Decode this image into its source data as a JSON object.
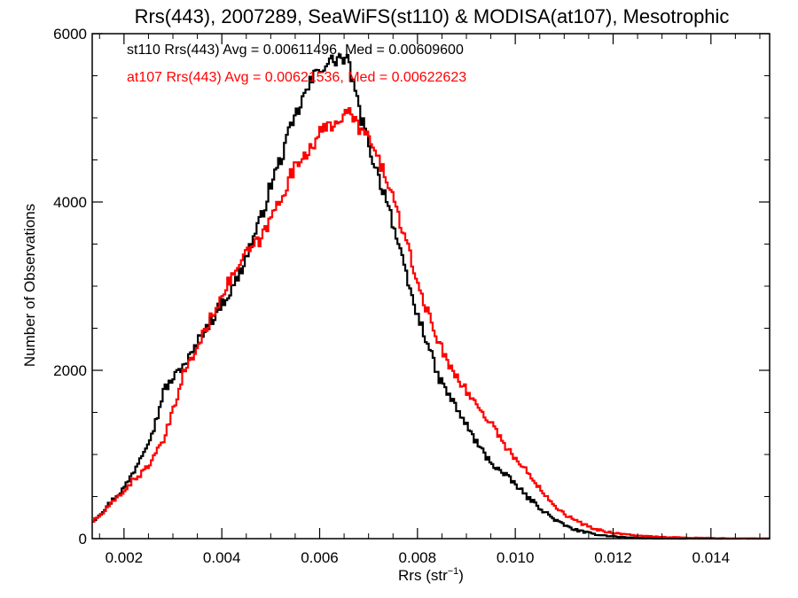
{
  "chart_data": {
    "type": "histogram-step",
    "title": "Rrs(443), 2007289, SeaWiFS(st110) & MODISA(at107), Mesotrophic",
    "xlabel": "Rrs (str",
    "xlabel_superscript": "−1",
    "xlabel_close": ")",
    "ylabel": "Number of Observations",
    "xlim": [
      0.00135,
      0.0152
    ],
    "ylim": [
      0,
      6000
    ],
    "xticks": [
      0.002,
      0.004,
      0.006,
      0.008,
      0.01,
      0.012,
      0.014
    ],
    "xtick_labels": [
      "0.002",
      "0.004",
      "0.006",
      "0.008",
      "0.010",
      "0.012",
      "0.014"
    ],
    "yticks": [
      0,
      2000,
      4000,
      6000
    ],
    "ytick_labels": [
      "0",
      "2000",
      "4000",
      "6000"
    ],
    "annotations": [
      {
        "text": "st110 Rrs(443) Avg = 0.00611496, Med = 0.00609600",
        "color": "#000000"
      },
      {
        "text": "at107 Rrs(443) Avg = 0.00621536, Med = 0.00622623",
        "color": "#ff0000"
      }
    ],
    "bin_width": 4e-05,
    "series": [
      {
        "color": "#000000",
        "points": [
          [
            0.00135,
            200
          ],
          [
            0.0016,
            350
          ],
          [
            0.0018,
            480
          ],
          [
            0.002,
            600
          ],
          [
            0.0022,
            800
          ],
          [
            0.0024,
            1050
          ],
          [
            0.0026,
            1300
          ],
          [
            0.0027,
            1480
          ],
          [
            0.0028,
            1750
          ],
          [
            0.003,
            1900
          ],
          [
            0.0032,
            2050
          ],
          [
            0.0034,
            2200
          ],
          [
            0.0036,
            2450
          ],
          [
            0.0038,
            2600
          ],
          [
            0.004,
            2800
          ],
          [
            0.0042,
            2950
          ],
          [
            0.0044,
            3200
          ],
          [
            0.0046,
            3500
          ],
          [
            0.0048,
            3800
          ],
          [
            0.005,
            4200
          ],
          [
            0.0052,
            4500
          ],
          [
            0.0054,
            4850
          ],
          [
            0.0056,
            5150
          ],
          [
            0.0058,
            5400
          ],
          [
            0.006,
            5600
          ],
          [
            0.0062,
            5650
          ],
          [
            0.0064,
            5720
          ],
          [
            0.0066,
            5650
          ],
          [
            0.0068,
            5100
          ],
          [
            0.007,
            4700
          ],
          [
            0.0072,
            4300
          ],
          [
            0.0074,
            4000
          ],
          [
            0.0076,
            3500
          ],
          [
            0.0078,
            3050
          ],
          [
            0.008,
            2650
          ],
          [
            0.0082,
            2350
          ],
          [
            0.0084,
            1950
          ],
          [
            0.0086,
            1750
          ],
          [
            0.0088,
            1550
          ],
          [
            0.009,
            1350
          ],
          [
            0.0092,
            1150
          ],
          [
            0.0094,
            980
          ],
          [
            0.0096,
            850
          ],
          [
            0.0098,
            750
          ],
          [
            0.01,
            650
          ],
          [
            0.0102,
            520
          ],
          [
            0.0104,
            420
          ],
          [
            0.0106,
            320
          ],
          [
            0.0108,
            230
          ],
          [
            0.011,
            160
          ],
          [
            0.0112,
            110
          ],
          [
            0.0114,
            80
          ],
          [
            0.0116,
            55
          ],
          [
            0.0118,
            40
          ],
          [
            0.012,
            28
          ],
          [
            0.0122,
            18
          ],
          [
            0.0124,
            10
          ],
          [
            0.0126,
            6
          ],
          [
            0.0128,
            4
          ],
          [
            0.013,
            2
          ],
          [
            0.0152,
            0
          ]
        ]
      },
      {
        "color": "#ff0000",
        "points": [
          [
            0.00135,
            200
          ],
          [
            0.0016,
            320
          ],
          [
            0.0018,
            450
          ],
          [
            0.002,
            570
          ],
          [
            0.0022,
            700
          ],
          [
            0.0024,
            800
          ],
          [
            0.0026,
            950
          ],
          [
            0.0028,
            1150
          ],
          [
            0.003,
            1500
          ],
          [
            0.0032,
            1950
          ],
          [
            0.0034,
            2150
          ],
          [
            0.0036,
            2400
          ],
          [
            0.0038,
            2650
          ],
          [
            0.004,
            2900
          ],
          [
            0.0042,
            3100
          ],
          [
            0.0044,
            3300
          ],
          [
            0.0046,
            3450
          ],
          [
            0.0048,
            3550
          ],
          [
            0.005,
            3800
          ],
          [
            0.0052,
            4050
          ],
          [
            0.0054,
            4300
          ],
          [
            0.0056,
            4500
          ],
          [
            0.0058,
            4650
          ],
          [
            0.006,
            4800
          ],
          [
            0.0062,
            4900
          ],
          [
            0.0064,
            5000
          ],
          [
            0.0066,
            5050
          ],
          [
            0.0068,
            4900
          ],
          [
            0.007,
            4750
          ],
          [
            0.0072,
            4500
          ],
          [
            0.0074,
            4250
          ],
          [
            0.0076,
            3850
          ],
          [
            0.0078,
            3450
          ],
          [
            0.008,
            3050
          ],
          [
            0.0082,
            2700
          ],
          [
            0.0084,
            2400
          ],
          [
            0.0086,
            2100
          ],
          [
            0.0088,
            1950
          ],
          [
            0.009,
            1750
          ],
          [
            0.0092,
            1600
          ],
          [
            0.0094,
            1450
          ],
          [
            0.0096,
            1300
          ],
          [
            0.0098,
            1100
          ],
          [
            0.01,
            950
          ],
          [
            0.0102,
            820
          ],
          [
            0.0104,
            680
          ],
          [
            0.0106,
            540
          ],
          [
            0.0108,
            400
          ],
          [
            0.011,
            300
          ],
          [
            0.0112,
            220
          ],
          [
            0.0114,
            170
          ],
          [
            0.0116,
            120
          ],
          [
            0.0118,
            90
          ],
          [
            0.012,
            70
          ],
          [
            0.0122,
            55
          ],
          [
            0.0124,
            42
          ],
          [
            0.0126,
            32
          ],
          [
            0.0128,
            24
          ],
          [
            0.013,
            18
          ],
          [
            0.0134,
            12
          ],
          [
            0.0138,
            8
          ],
          [
            0.0142,
            5
          ],
          [
            0.0146,
            3
          ],
          [
            0.0152,
            1
          ]
        ]
      }
    ]
  }
}
